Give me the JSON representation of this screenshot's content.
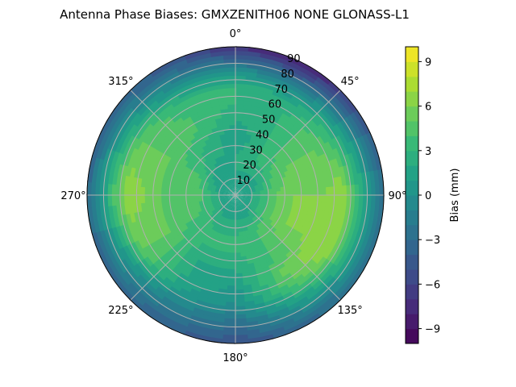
{
  "chart_data": {
    "type": "heatmap",
    "subtype": "polar-contour",
    "title": "Antenna Phase Biases: GMXZENITH06     NONE GLONASS-L1",
    "colormap": "viridis",
    "azimuth_direction": "clockwise",
    "azimuth_zero": "top",
    "azimuth_tick_labels": [
      "0°",
      "45°",
      "90°",
      "135°",
      "180°",
      "225°",
      "270°",
      "315°"
    ],
    "radial_tick_labels": [
      "10",
      "20",
      "30",
      "40",
      "50",
      "60",
      "70",
      "80",
      "90"
    ],
    "radial_range": [
      0,
      90
    ],
    "grid": true,
    "colorbar": {
      "label": "Bias (mm)",
      "range": [
        -10,
        10
      ],
      "levels_step": 1,
      "tick_labels": [
        "−9",
        "−6",
        "−3",
        "0",
        "3",
        "6",
        "9"
      ],
      "tick_values": [
        -9,
        -6,
        -3,
        0,
        3,
        6,
        9
      ]
    },
    "zenith": [
      5,
      15,
      25,
      35,
      45,
      55,
      65,
      75,
      85
    ],
    "azimuth": [
      0,
      30,
      60,
      90,
      120,
      150,
      180,
      210,
      240,
      270,
      300,
      330
    ],
    "values": [
      [
        1,
        2,
        2,
        1,
        2,
        3,
        3,
        0,
        -5
      ],
      [
        1,
        2,
        3,
        3,
        3,
        3,
        2,
        -1,
        -6
      ],
      [
        1,
        2,
        4,
        5,
        5,
        5,
        4,
        1,
        -3
      ],
      [
        1,
        3,
        5,
        6,
        6,
        6,
        7,
        3,
        -1
      ],
      [
        1,
        3,
        5,
        6,
        6,
        7,
        7,
        3,
        -1
      ],
      [
        1,
        2,
        4,
        4,
        4,
        5,
        4,
        1,
        -2
      ],
      [
        1,
        2,
        3,
        3,
        2,
        1,
        0,
        -2,
        -4
      ],
      [
        1,
        2,
        3,
        3,
        2,
        2,
        1,
        -1,
        -3
      ],
      [
        1,
        3,
        4,
        4,
        5,
        5,
        5,
        1,
        -2
      ],
      [
        1,
        3,
        5,
        5,
        5,
        6,
        7,
        4,
        -1
      ],
      [
        1,
        2,
        4,
        4,
        5,
        5,
        5,
        2,
        -2
      ],
      [
        1,
        1,
        2,
        3,
        4,
        4,
        3,
        0,
        -3
      ]
    ]
  }
}
